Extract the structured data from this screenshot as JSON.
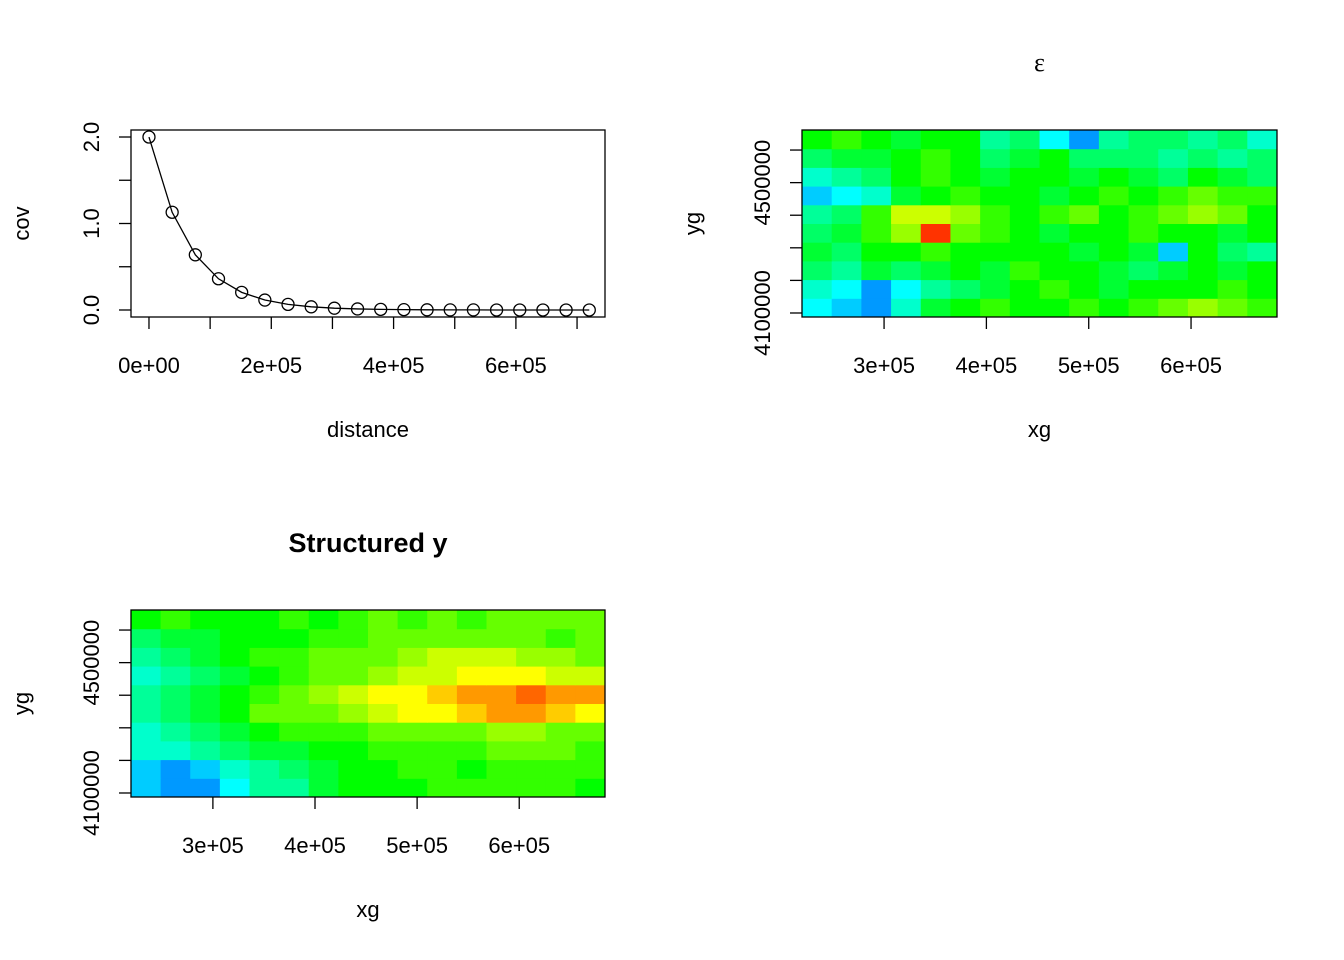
{
  "chart_data": [
    {
      "type": "line",
      "xlabel": "distance",
      "ylabel": "cov",
      "color": "#000000",
      "marker": "circle",
      "x": [
        0,
        37895,
        75789,
        113684,
        151579,
        189474,
        227368,
        265263,
        303158,
        341053,
        378947,
        416842,
        454737,
        492632,
        530526,
        568421,
        606316,
        644211,
        682105,
        720000
      ],
      "values": [
        2,
        1.13,
        0.638,
        0.361,
        0.204,
        0.115,
        0.065,
        0.037,
        0.021,
        0.012,
        0.007,
        0.004,
        0.002,
        0.001,
        0.001,
        0,
        0,
        0,
        0,
        0
      ],
      "xlim": [
        -29400,
        745700
      ],
      "xticks": [
        {
          "value": 0,
          "label": "0e+00"
        },
        {
          "value": 200000,
          "label": "2e+05"
        },
        {
          "value": 400000,
          "label": "4e+05"
        },
        {
          "value": 600000,
          "label": "6e+05"
        }
      ],
      "xminor_ticks": [
        100000,
        300000,
        500000,
        700000
      ],
      "ylim": [
        -0.081,
        2.081
      ],
      "yticks": [
        {
          "value": 0,
          "label": "0.0"
        },
        {
          "value": 1,
          "label": "1.0"
        },
        {
          "value": 2,
          "label": "2.0"
        }
      ],
      "yminor_ticks": [
        0.5,
        1.5
      ]
    },
    {
      "type": "heatmap",
      "title": "ε",
      "xlabel": "xg",
      "ylabel": "yg",
      "colors": [
        "#0000ff",
        "#00ffff",
        "#00ff00",
        "#ffff00",
        "#ff0000"
      ],
      "xlim": [
        219800,
        684000
      ],
      "ylim": [
        4087700,
        4661500
      ],
      "xticks": [
        {
          "value": 300000,
          "label": "3e+05"
        },
        {
          "value": 400000,
          "label": "4e+05"
        },
        {
          "value": 500000,
          "label": "5e+05"
        },
        {
          "value": 600000,
          "label": "6e+05"
        }
      ],
      "yticks": [
        4100000,
        4500000
      ],
      "yminor_ticks": [
        4200000,
        4300000,
        4400000,
        4600000
      ],
      "z": [
        [
          0.25,
          0.2,
          0.15,
          0.3,
          0.45,
          0.5,
          0.55,
          0.5,
          0.5,
          0.55,
          0.5,
          0.55,
          0.6,
          0.65,
          0.6,
          0.55
        ],
        [
          0.3,
          0.25,
          0.15,
          0.25,
          0.35,
          0.4,
          0.45,
          0.5,
          0.55,
          0.5,
          0.45,
          0.5,
          0.5,
          0.5,
          0.55,
          0.5
        ],
        [
          0.4,
          0.35,
          0.45,
          0.4,
          0.45,
          0.5,
          0.45,
          0.55,
          0.5,
          0.5,
          0.45,
          0.4,
          0.45,
          0.5,
          0.45,
          0.5
        ],
        [
          0.45,
          0.4,
          0.5,
          0.5,
          0.55,
          0.5,
          0.5,
          0.5,
          0.5,
          0.45,
          0.5,
          0.45,
          0.2,
          0.5,
          0.4,
          0.35
        ],
        [
          0.4,
          0.45,
          0.55,
          0.65,
          0.95,
          0.6,
          0.55,
          0.5,
          0.45,
          0.5,
          0.5,
          0.55,
          0.5,
          0.5,
          0.45,
          0.5
        ],
        [
          0.35,
          0.4,
          0.55,
          0.7,
          0.7,
          0.65,
          0.55,
          0.5,
          0.55,
          0.6,
          0.5,
          0.55,
          0.6,
          0.65,
          0.6,
          0.5
        ],
        [
          0.2,
          0.25,
          0.3,
          0.45,
          0.5,
          0.55,
          0.5,
          0.5,
          0.45,
          0.5,
          0.55,
          0.5,
          0.55,
          0.6,
          0.55,
          0.55
        ],
        [
          0.3,
          0.35,
          0.4,
          0.5,
          0.55,
          0.5,
          0.45,
          0.5,
          0.5,
          0.45,
          0.5,
          0.45,
          0.4,
          0.5,
          0.45,
          0.4
        ],
        [
          0.4,
          0.45,
          0.45,
          0.5,
          0.55,
          0.5,
          0.4,
          0.45,
          0.5,
          0.4,
          0.4,
          0.4,
          0.35,
          0.4,
          0.35,
          0.4
        ],
        [
          0.5,
          0.55,
          0.5,
          0.45,
          0.5,
          0.5,
          0.35,
          0.4,
          0.25,
          0.15,
          0.35,
          0.4,
          0.4,
          0.35,
          0.4,
          0.3
        ]
      ]
    },
    {
      "type": "heatmap",
      "title": "Structured y",
      "xlabel": "xg",
      "ylabel": "yg",
      "colors": [
        "#0000ff",
        "#00ffff",
        "#00ff00",
        "#ffff00",
        "#ff0000"
      ],
      "xlim": [
        219800,
        684000
      ],
      "ylim": [
        4087700,
        4661500
      ],
      "xticks": [
        {
          "value": 300000,
          "label": "3e+05"
        },
        {
          "value": 400000,
          "label": "4e+05"
        },
        {
          "value": 500000,
          "label": "5e+05"
        },
        {
          "value": 600000,
          "label": "6e+05"
        }
      ],
      "yticks": [
        4100000,
        4500000
      ],
      "yminor_ticks": [
        4200000,
        4300000,
        4400000,
        4600000
      ],
      "z": [
        [
          0.2,
          0.15,
          0.15,
          0.25,
          0.35,
          0.35,
          0.45,
          0.5,
          0.5,
          0.5,
          0.55,
          0.55,
          0.55,
          0.55,
          0.55,
          0.5
        ],
        [
          0.2,
          0.15,
          0.2,
          0.3,
          0.35,
          0.4,
          0.45,
          0.5,
          0.5,
          0.55,
          0.55,
          0.5,
          0.55,
          0.55,
          0.55,
          0.55
        ],
        [
          0.3,
          0.3,
          0.35,
          0.4,
          0.45,
          0.45,
          0.5,
          0.5,
          0.55,
          0.55,
          0.55,
          0.55,
          0.6,
          0.6,
          0.6,
          0.55
        ],
        [
          0.3,
          0.35,
          0.4,
          0.45,
          0.5,
          0.55,
          0.55,
          0.55,
          0.6,
          0.6,
          0.6,
          0.6,
          0.65,
          0.65,
          0.6,
          0.6
        ],
        [
          0.35,
          0.4,
          0.45,
          0.5,
          0.6,
          0.6,
          0.6,
          0.65,
          0.7,
          0.75,
          0.75,
          0.8,
          0.85,
          0.85,
          0.8,
          0.75
        ],
        [
          0.35,
          0.4,
          0.45,
          0.5,
          0.55,
          0.6,
          0.65,
          0.7,
          0.75,
          0.75,
          0.8,
          0.85,
          0.85,
          0.9,
          0.85,
          0.85
        ],
        [
          0.3,
          0.35,
          0.4,
          0.45,
          0.5,
          0.55,
          0.6,
          0.6,
          0.65,
          0.7,
          0.7,
          0.75,
          0.75,
          0.75,
          0.7,
          0.7
        ],
        [
          0.35,
          0.4,
          0.45,
          0.5,
          0.55,
          0.55,
          0.6,
          0.6,
          0.6,
          0.65,
          0.7,
          0.7,
          0.7,
          0.65,
          0.65,
          0.6
        ],
        [
          0.4,
          0.45,
          0.45,
          0.5,
          0.5,
          0.5,
          0.55,
          0.55,
          0.6,
          0.6,
          0.6,
          0.6,
          0.6,
          0.6,
          0.55,
          0.6
        ],
        [
          0.5,
          0.55,
          0.5,
          0.5,
          0.5,
          0.55,
          0.5,
          0.55,
          0.6,
          0.55,
          0.6,
          0.55,
          0.6,
          0.6,
          0.6,
          0.6
        ]
      ]
    }
  ]
}
